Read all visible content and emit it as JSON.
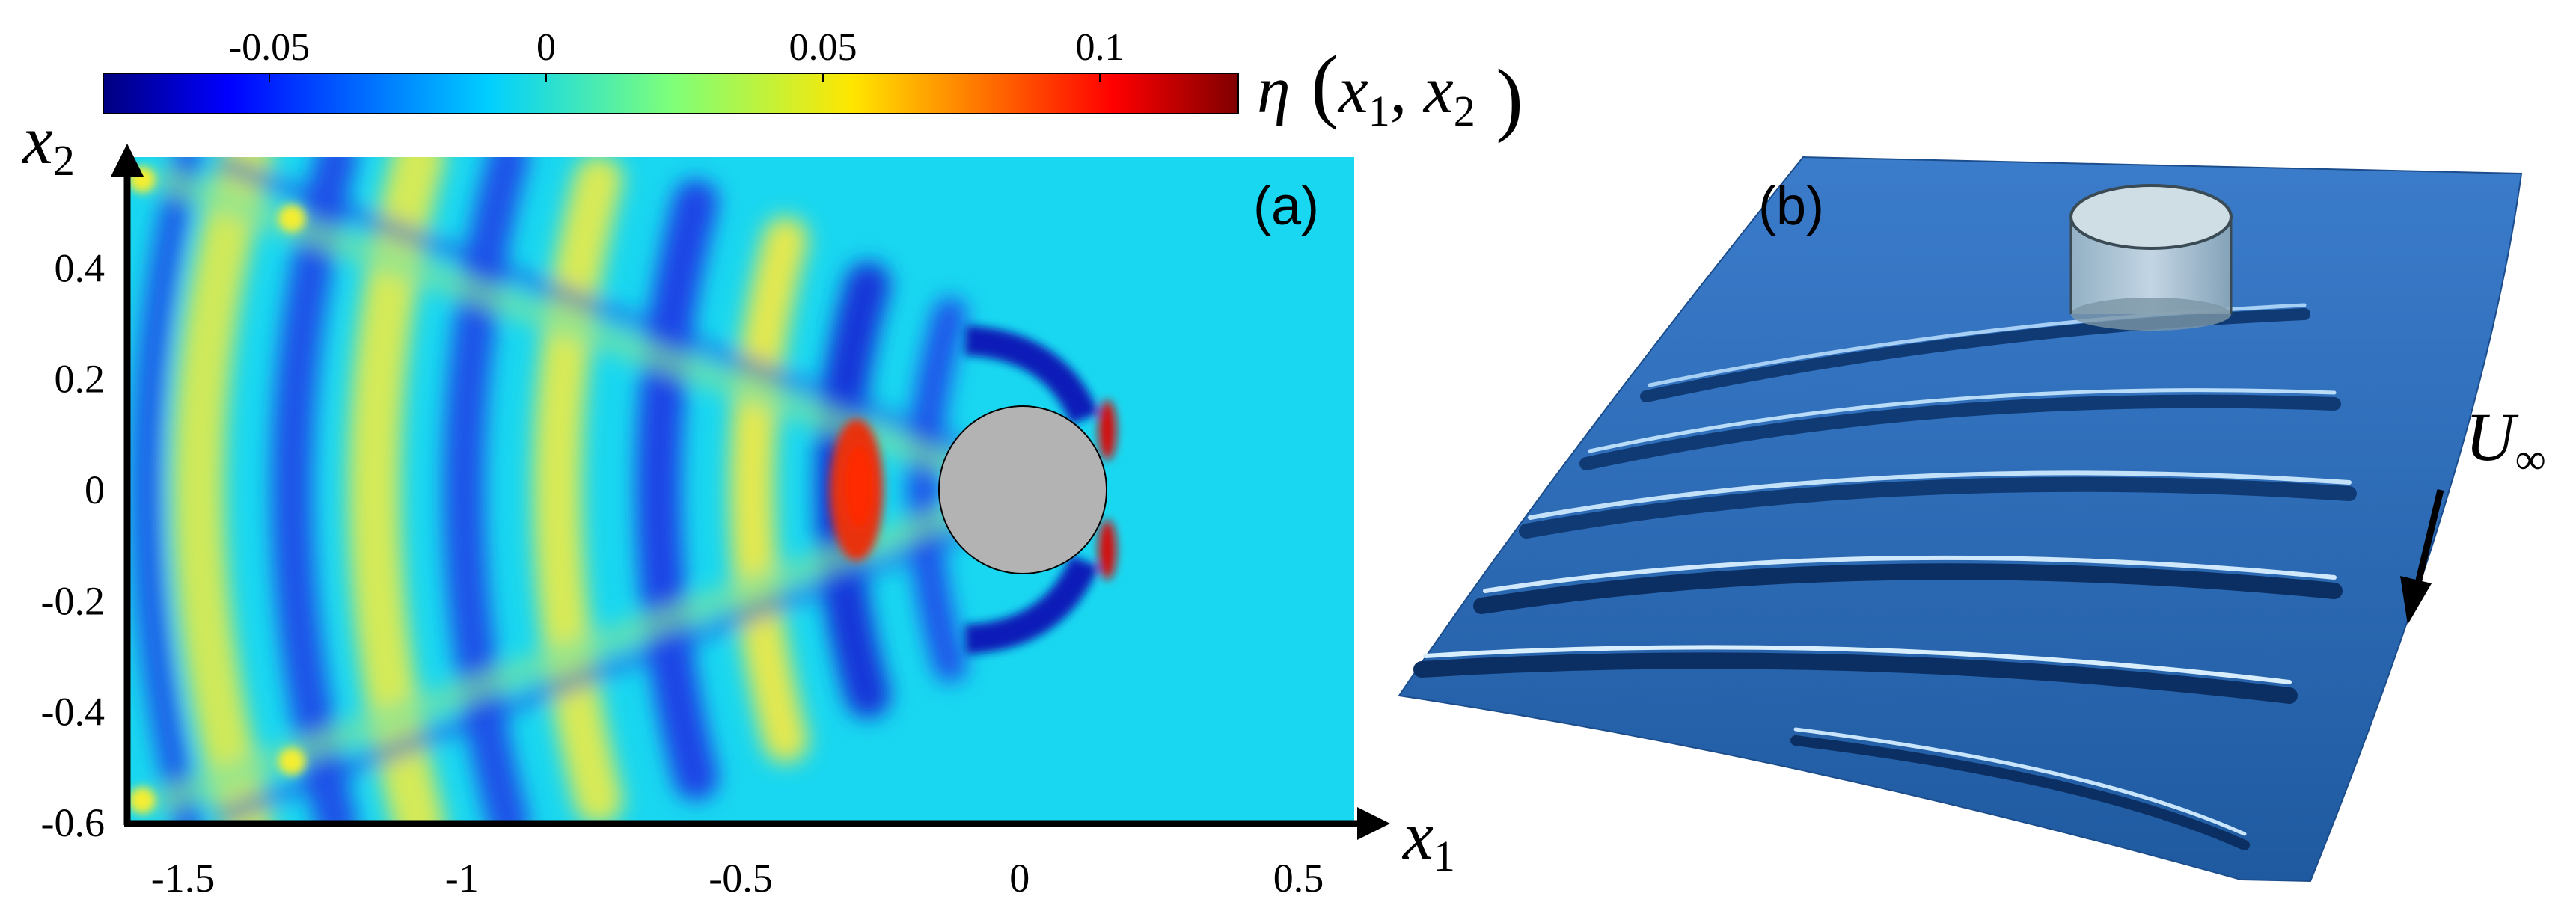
{
  "figure": {
    "panel_a": {
      "label": "(a)",
      "colorbar": {
        "ticks": [
          "-0.05",
          "0",
          "0.05",
          "0.1"
        ],
        "tick_values": [
          -0.05,
          0,
          0.05,
          0.1
        ],
        "range": [
          -0.08,
          0.125
        ],
        "label_symbol": "η",
        "label_args": "x1, x2",
        "colormap": "jet"
      },
      "x_axis": {
        "name": "x",
        "sub": "1",
        "ticks": [
          "-1.5",
          "-1",
          "-0.5",
          "0",
          "0.5"
        ],
        "tick_values": [
          -1.5,
          -1,
          -0.5,
          0,
          0.5
        ],
        "range": [
          -1.6,
          0.6
        ]
      },
      "y_axis": {
        "name": "x",
        "sub": "2",
        "ticks": [
          "0.4",
          "0.2",
          "0",
          "-0.2",
          "-0.4",
          "-0.6"
        ],
        "tick_values": [
          0.4,
          0.2,
          0,
          -0.2,
          -0.4,
          -0.6
        ],
        "range": [
          -0.6,
          0.6
        ]
      },
      "obstacle": {
        "shape": "circle",
        "center": [
          0,
          0
        ],
        "radius": 0.15,
        "color": "#b3b3b3"
      },
      "background_color": "#19d7f0"
    },
    "panel_b": {
      "label": "(b)",
      "flow_label": "U",
      "flow_sub": "∞",
      "surface_color": "#2f6fb5"
    }
  },
  "chart_data": {
    "type": "heatmap",
    "title": "",
    "xlabel": "x1",
    "ylabel": "x2",
    "xlim": [
      -1.6,
      0.6
    ],
    "ylim": [
      -0.6,
      0.6
    ],
    "zlabel": "η(x1, x2)",
    "zlim": [
      -0.08,
      0.125
    ],
    "colorbar_ticks": [
      -0.05,
      0,
      0.05,
      0.1
    ]
  }
}
